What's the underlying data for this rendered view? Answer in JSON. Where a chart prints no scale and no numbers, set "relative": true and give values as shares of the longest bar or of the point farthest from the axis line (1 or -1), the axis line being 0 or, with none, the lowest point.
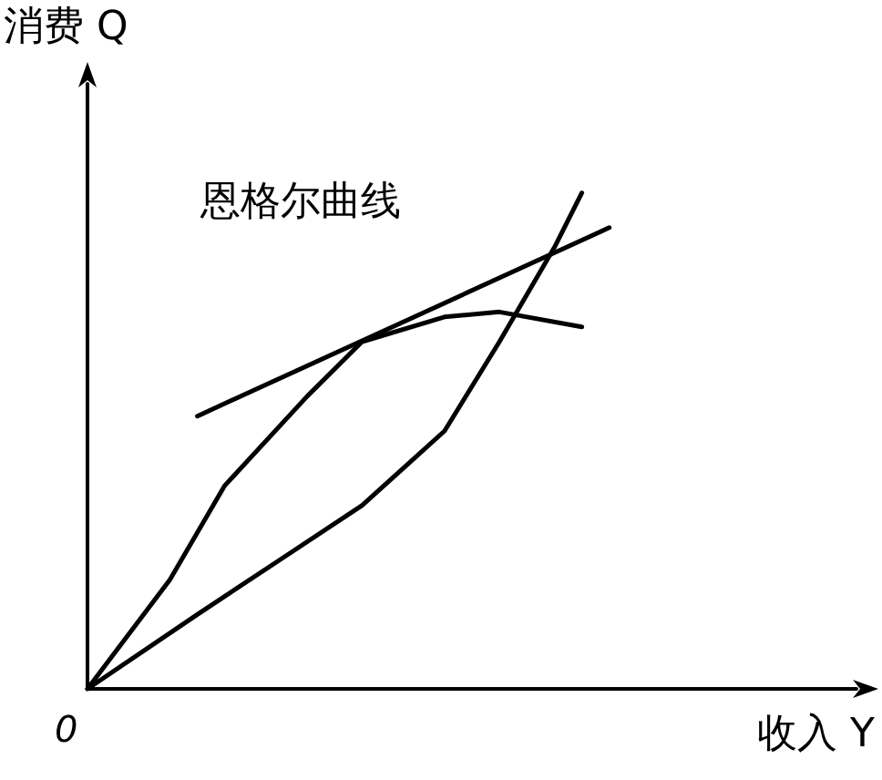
{
  "chart_data": {
    "type": "line",
    "relative": true,
    "xlabel": "收入 Y",
    "ylabel": "消费 Q",
    "annotations": [
      "恩格尔曲线",
      "0"
    ],
    "grid": false,
    "marker": "none",
    "line_style": "solid",
    "categories": [
      null,
      null,
      null,
      null,
      null,
      null,
      null,
      null,
      null,
      null,
      null,
      null,
      null,
      null,
      null,
      null,
      null,
      null,
      null,
      null,
      null,
      null,
      null,
      null,
      null,
      null,
      null,
      null,
      null
    ],
    "series": [
      {
        "color": "#000000",
        "values": [
          0,
          null,
          null,
          0.22,
          null,
          0.41,
          null,
          null,
          0.59,
          null,
          0.7,
          null,
          null,
          0.75,
          null,
          0.76,
          null,
          null,
          0.73,
          null,
          null,
          null,
          null,
          null,
          null,
          null,
          null,
          null,
          null
        ]
      },
      {
        "color": "#000000",
        "values": [
          0,
          null,
          null,
          null,
          0.15,
          null,
          null,
          0.26,
          null,
          null,
          0.37,
          null,
          null,
          0.52,
          null,
          0.7,
          null,
          0.89,
          1,
          null,
          null,
          null,
          null,
          null,
          null,
          null,
          null,
          null,
          null
        ]
      },
      {
        "color": "#000000",
        "values": [
          null,
          null,
          null,
          null,
          0.55,
          null,
          null,
          null,
          null,
          null,
          null,
          null,
          null,
          null,
          null,
          null,
          null,
          null,
          null,
          0.93,
          null,
          null,
          null,
          null,
          null,
          null,
          null,
          null,
          null
        ]
      }
    ]
  }
}
